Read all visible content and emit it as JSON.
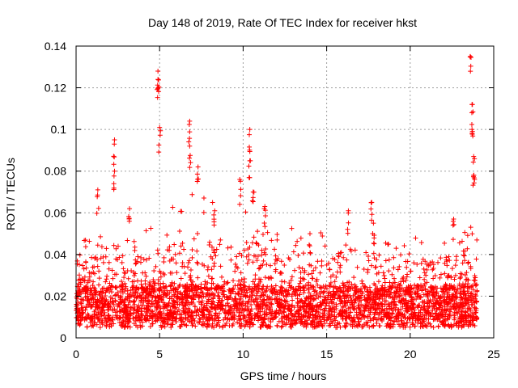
{
  "chart_data": {
    "type": "scatter",
    "title": "Day 148 of 2019, Rate Of TEC Index for receiver hkst",
    "xlabel": "GPS time / hours",
    "ylabel": "ROTI / TECUs",
    "xlim": [
      0,
      25
    ],
    "ylim": [
      0,
      0.14
    ],
    "xticks": [
      0,
      5,
      10,
      15,
      20,
      25
    ],
    "xtick_labels": [
      "0",
      "5",
      "10",
      "15",
      "20",
      "25"
    ],
    "yticks": [
      0,
      0.02,
      0.04,
      0.06,
      0.08,
      0.1,
      0.12,
      0.14
    ],
    "ytick_labels": [
      "0",
      "0.02",
      "0.04",
      "0.06",
      "0.08",
      "0.1",
      "0.12",
      "0.14"
    ],
    "grid": true,
    "marker": "+",
    "color": "#ff0000",
    "data_span_hours": [
      0,
      24
    ],
    "baseline_band": [
      0.005,
      0.025
    ],
    "notable_points": [
      {
        "x": 1.3,
        "y": 0.071
      },
      {
        "x": 2.3,
        "y": 0.095
      },
      {
        "x": 2.3,
        "y": 0.08
      },
      {
        "x": 3.2,
        "y": 0.062
      },
      {
        "x": 4.9,
        "y": 0.128
      },
      {
        "x": 4.9,
        "y": 0.124
      },
      {
        "x": 5.0,
        "y": 0.101
      },
      {
        "x": 6.8,
        "y": 0.104
      },
      {
        "x": 6.8,
        "y": 0.092
      },
      {
        "x": 7.3,
        "y": 0.082
      },
      {
        "x": 8.3,
        "y": 0.061
      },
      {
        "x": 9.8,
        "y": 0.076
      },
      {
        "x": 10.4,
        "y": 0.1
      },
      {
        "x": 10.4,
        "y": 0.085
      },
      {
        "x": 10.6,
        "y": 0.07
      },
      {
        "x": 11.3,
        "y": 0.063
      },
      {
        "x": 14.0,
        "y": 0.05
      },
      {
        "x": 16.3,
        "y": 0.061
      },
      {
        "x": 17.7,
        "y": 0.065
      },
      {
        "x": 17.8,
        "y": 0.055
      },
      {
        "x": 22.6,
        "y": 0.057
      },
      {
        "x": 23.6,
        "y": 0.135
      },
      {
        "x": 23.7,
        "y": 0.112
      },
      {
        "x": 23.7,
        "y": 0.1
      },
      {
        "x": 23.8,
        "y": 0.087
      },
      {
        "x": 23.8,
        "y": 0.078
      }
    ]
  }
}
